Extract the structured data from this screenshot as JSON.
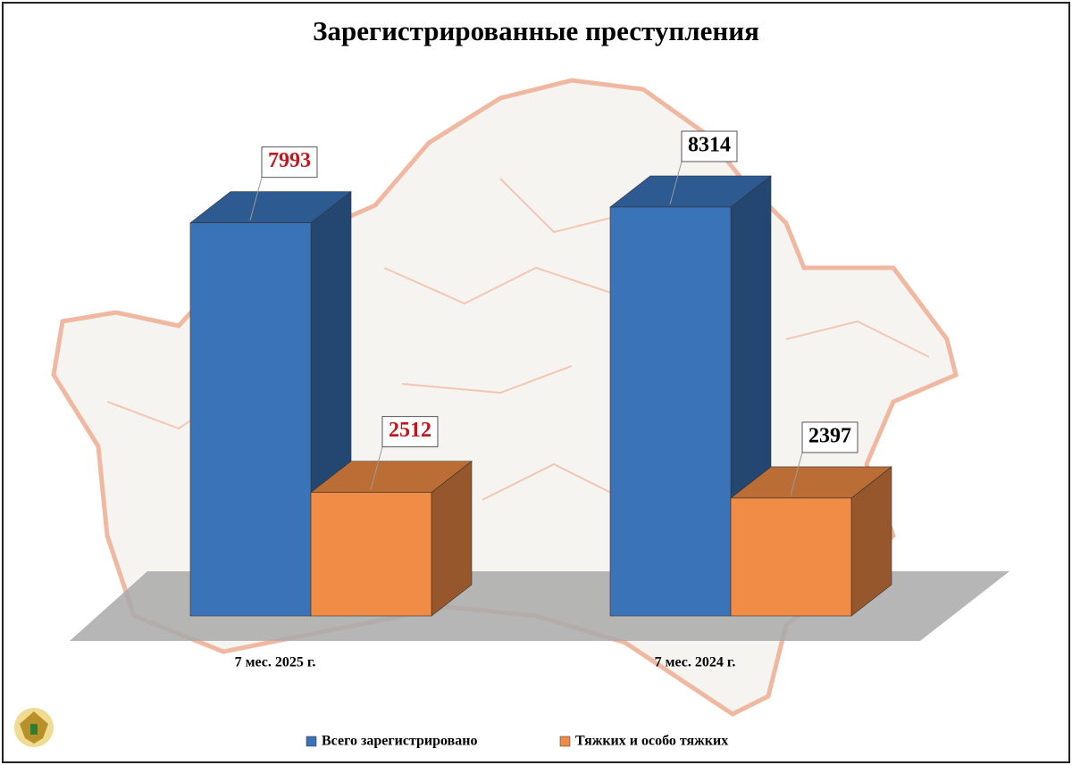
{
  "chart_data": {
    "type": "bar3d",
    "title": "Зарегистрированные преступления",
    "categories": [
      "7 мес. 2025 г.",
      "7 мес. 2024 г."
    ],
    "series": [
      {
        "name": "Всего зарегистрировано",
        "color": "#3a73b8",
        "values": [
          7993,
          8314
        ]
      },
      {
        "name": "Тяжких и особо тяжких",
        "color": "#f08c45",
        "values": [
          2512,
          2397
        ]
      }
    ],
    "label_colors": [
      "#c0171d",
      "#000000"
    ],
    "legend": "bottom"
  }
}
